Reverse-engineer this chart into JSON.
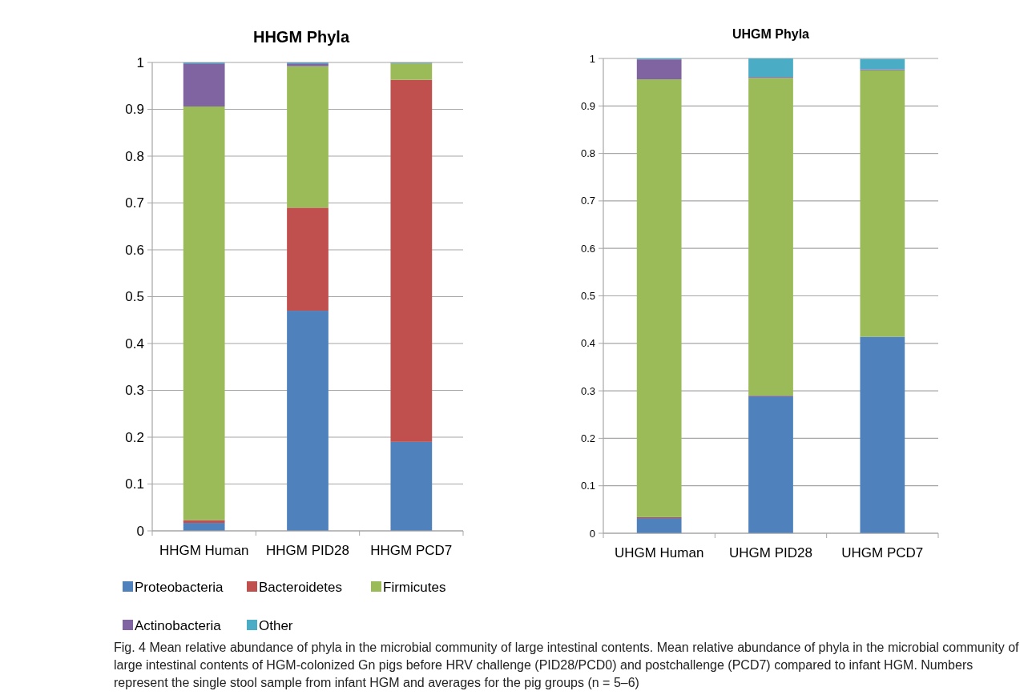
{
  "chart_data": [
    {
      "type": "bar",
      "title": "HHGM Phyla",
      "categories": [
        "HHGM Human",
        "HHGM PID28",
        "HHGM PCD7"
      ],
      "stacked": true,
      "ylim": [
        0,
        1
      ],
      "yticks": [
        0,
        0.1,
        0.2,
        0.3,
        0.4,
        0.5,
        0.6,
        0.7,
        0.8,
        0.9,
        1
      ],
      "grid": "y",
      "legend": "bottom",
      "series": [
        {
          "name": "Proteobacteria",
          "color": "#4f81bd",
          "values": [
            0.017,
            0.47,
            0.19
          ]
        },
        {
          "name": "Bacteroidetes",
          "color": "#c0504d",
          "values": [
            0.006,
            0.22,
            0.773
          ]
        },
        {
          "name": "Firmicutes",
          "color": "#9bbb59",
          "values": [
            0.883,
            0.302,
            0.035
          ]
        },
        {
          "name": "Actinobacteria",
          "color": "#8064a2",
          "values": [
            0.092,
            0.006,
            0.001
          ]
        },
        {
          "name": "Other",
          "color": "#4bacc6",
          "values": [
            0.002,
            0.002,
            0.001
          ]
        }
      ],
      "annotations": [
        "Fig. 4  Mean relative abundance of phyla in the microbial community of large intestinal contents. Mean relative abundance of phyla in the microbial community of large intestinal contents of HGM-colonized Gn pigs before HRV challenge (PID28/PCD0) and postchallenge (PCD7) compared to infant HGM. Numbers represent the single stool sample from infant HGM and averages for the pig groups (n = 5–6)"
      ]
    },
    {
      "type": "bar",
      "title": "UHGM Phyla",
      "categories": [
        "UHGM Human",
        "UHGM PID28",
        "UHGM PCD7"
      ],
      "stacked": true,
      "ylim": [
        0,
        1
      ],
      "yticks": [
        0,
        0.1,
        0.2,
        0.3,
        0.4,
        0.5,
        0.6,
        0.7,
        0.8,
        0.9,
        1
      ],
      "grid": "y",
      "series": [
        {
          "color": "#4f81bd",
          "values": [
            0.032,
            0.289,
            0.414
          ]
        },
        {
          "color": "#c0504d",
          "values": [
            0.002,
            0.001,
            null
          ]
        },
        {
          "color": "#9bbb59",
          "values": [
            0.922,
            0.669,
            0.561
          ]
        },
        {
          "color": "#8064a2",
          "values": [
            0.042,
            0.002,
            0.002
          ]
        },
        {
          "color": "#4bacc6",
          "values": [
            0.002,
            0.039,
            0.022
          ]
        }
      ]
    }
  ]
}
